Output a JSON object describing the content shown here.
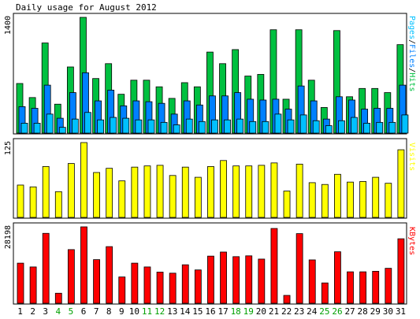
{
  "title": "Daily usage for August 2012",
  "panels": {
    "hits": {
      "ymax_label": "1400",
      "legend_parts": [
        "Pages",
        "/",
        "Files",
        "/",
        "Hits"
      ]
    },
    "visits": {
      "ymax_label": "125",
      "legend": "Visits"
    },
    "kbytes": {
      "ymax_label": "28198",
      "legend": "KBytes"
    }
  },
  "colors": {
    "background": "#ffffff",
    "frame": "#000000",
    "hits": "#00c040",
    "files": "#0080ff",
    "pages": "#00c0ff",
    "visits": "#ffff00",
    "kbytes": "#ff0000",
    "weekday_label": "#000000",
    "weekend_label": "#00a000"
  },
  "chart_data": {
    "type": "bar",
    "title": "Daily usage for August 2012",
    "categories": [
      "1",
      "2",
      "3",
      "4",
      "5",
      "6",
      "7",
      "8",
      "9",
      "10",
      "11",
      "12",
      "13",
      "14",
      "15",
      "16",
      "17",
      "18",
      "19",
      "20",
      "21",
      "22",
      "23",
      "24",
      "25",
      "26",
      "27",
      "28",
      "29",
      "30",
      "31"
    ],
    "weekend_days": [
      "4",
      "5",
      "11",
      "12",
      "18",
      "19",
      "25",
      "26"
    ],
    "panels": [
      {
        "name": "hits-files-pages",
        "ymax": 1400,
        "ylim": [
          0,
          1400
        ],
        "series": [
          {
            "name": "Hits",
            "values": [
              600,
              430,
              1090,
              350,
              800,
              1400,
              660,
              840,
              470,
              640,
              640,
              560,
              420,
              610,
              560,
              980,
              840,
              1010,
              690,
              710,
              1250,
              410,
              1250,
              640,
              310,
              1240,
              440,
              540,
              540,
              490,
              1070
            ]
          },
          {
            "name": "Files",
            "values": [
              320,
              300,
              580,
              180,
              490,
              730,
              390,
              520,
              330,
              390,
              380,
              360,
              230,
              390,
              340,
              450,
              450,
              490,
              410,
              400,
              410,
              290,
              570,
              390,
              170,
              440,
              400,
              290,
              300,
              300,
              580
            ]
          },
          {
            "name": "Pages",
            "values": [
              120,
              120,
              230,
              70,
              170,
              250,
              160,
              190,
              180,
              160,
              160,
              130,
              100,
              170,
              140,
              160,
              160,
              170,
              140,
              140,
              230,
              160,
              220,
              150,
              90,
              150,
              190,
              120,
              130,
              130,
              220
            ]
          }
        ]
      },
      {
        "name": "visits",
        "ymax": 125,
        "ylim": [
          0,
          125
        ],
        "series": [
          {
            "name": "Visits",
            "values": [
              54,
              51,
              85,
              43,
              90,
              125,
              75,
              82,
              61,
              84,
              86,
              87,
              70,
              84,
              67,
              85,
              95,
              86,
              86,
              87,
              91,
              44,
              89,
              58,
              55,
              72,
              59,
              60,
              67,
              57,
              113
            ]
          }
        ]
      },
      {
        "name": "kbytes",
        "ymax": 28198,
        "ylim": [
          0,
          28198
        ],
        "series": [
          {
            "name": "KBytes",
            "values": [
              14800,
              13400,
              25800,
              3700,
              19800,
              28198,
              16100,
              20900,
              9700,
              14800,
              13400,
              11500,
              11100,
              14200,
              12300,
              17400,
              18900,
              17200,
              17500,
              16300,
              27600,
              2900,
              25700,
              16000,
              7500,
              19000,
              11600,
              11600,
              11800,
              12900,
              23800
            ]
          }
        ]
      }
    ]
  }
}
